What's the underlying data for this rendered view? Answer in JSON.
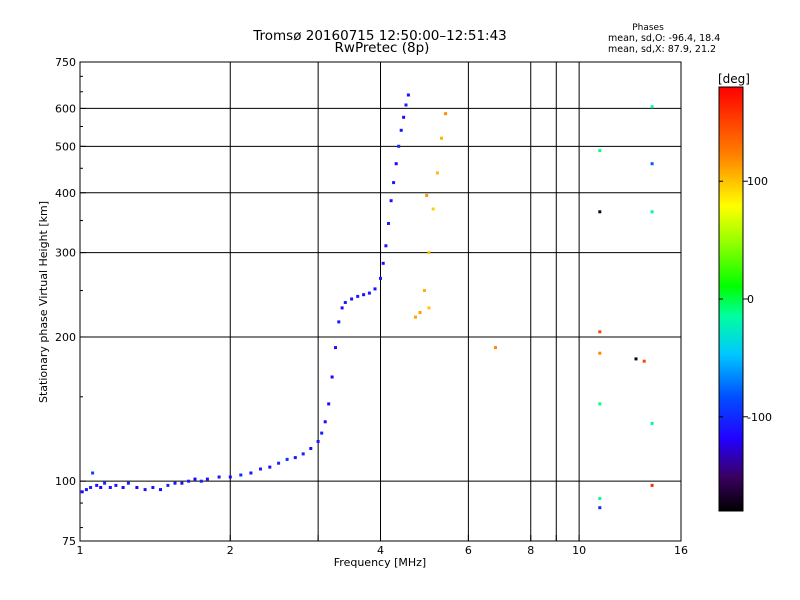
{
  "title_line1": "Tromsø 20160715 12:50:00–12:51:43",
  "title_line2": "RwPretec (8p)",
  "stats": {
    "heading": "Phases",
    "o_line": "mean, sd,O: -96.4, 18.4",
    "x_line": "mean, sd,X:  87.9, 21.2"
  },
  "xlabel": "Frequency [MHz]",
  "ylabel": "Stationary phase Virtual Height [km]",
  "colorbar": {
    "label": "[deg]",
    "range": [
      -180,
      180
    ],
    "ticks": [
      {
        "value": 100,
        "text": "100"
      },
      {
        "value": 0,
        "text": "0"
      },
      {
        "value": -100,
        "text": "-100"
      }
    ]
  },
  "chart_data": {
    "type": "scatter",
    "title": "Tromsø 20160715 12:50:00–12:51:43",
    "subtitle": "RwPretec (8p)",
    "xlabel": "Frequency [MHz]",
    "ylabel": "Stationary phase Virtual Height [km]",
    "xscale": "log",
    "yscale": "log",
    "xlim": [
      1,
      16
    ],
    "ylim": [
      75,
      750
    ],
    "grid": true,
    "x_ticks": [
      {
        "value": 1,
        "text": "1",
        "grid": false
      },
      {
        "value": 2,
        "text": "2",
        "grid": true
      },
      {
        "value": 3,
        "text": "",
        "grid": true
      },
      {
        "value": 4,
        "text": "4",
        "grid": true
      },
      {
        "value": 6,
        "text": "6",
        "grid": true
      },
      {
        "value": 8,
        "text": "8",
        "grid": true
      },
      {
        "value": 9,
        "text": "",
        "grid": true
      },
      {
        "value": 10,
        "text": "10",
        "grid": true
      },
      {
        "value": 16,
        "text": "16",
        "grid": false
      }
    ],
    "y_ticks": [
      {
        "value": 75,
        "text": "75",
        "grid": false
      },
      {
        "value": 100,
        "text": "100",
        "grid": true
      },
      {
        "value": 200,
        "text": "200",
        "grid": true
      },
      {
        "value": 300,
        "text": "300",
        "grid": true
      },
      {
        "value": 400,
        "text": "400",
        "grid": true
      },
      {
        "value": 500,
        "text": "500",
        "grid": true
      },
      {
        "value": 600,
        "text": "600",
        "grid": true
      },
      {
        "value": 750,
        "text": "750",
        "grid": false
      }
    ],
    "color_by": "phase [deg]",
    "points": [
      {
        "x": 1.01,
        "y": 95,
        "phase": -115
      },
      {
        "x": 1.03,
        "y": 96,
        "phase": -110
      },
      {
        "x": 1.05,
        "y": 97,
        "phase": -105
      },
      {
        "x": 1.06,
        "y": 104,
        "phase": -90
      },
      {
        "x": 1.08,
        "y": 98,
        "phase": -112
      },
      {
        "x": 1.1,
        "y": 97,
        "phase": -118
      },
      {
        "x": 1.12,
        "y": 99,
        "phase": -100
      },
      {
        "x": 1.15,
        "y": 97,
        "phase": -113
      },
      {
        "x": 1.18,
        "y": 98,
        "phase": -108
      },
      {
        "x": 1.22,
        "y": 97,
        "phase": -116
      },
      {
        "x": 1.25,
        "y": 99,
        "phase": -104
      },
      {
        "x": 1.3,
        "y": 97,
        "phase": -120
      },
      {
        "x": 1.35,
        "y": 96,
        "phase": -111
      },
      {
        "x": 1.4,
        "y": 97,
        "phase": -109
      },
      {
        "x": 1.45,
        "y": 96,
        "phase": -117
      },
      {
        "x": 1.5,
        "y": 98,
        "phase": -102
      },
      {
        "x": 1.55,
        "y": 99,
        "phase": -110
      },
      {
        "x": 1.6,
        "y": 99,
        "phase": -114
      },
      {
        "x": 1.65,
        "y": 100,
        "phase": -106
      },
      {
        "x": 1.7,
        "y": 101,
        "phase": -118
      },
      {
        "x": 1.75,
        "y": 100,
        "phase": -103
      },
      {
        "x": 1.8,
        "y": 101,
        "phase": -112
      },
      {
        "x": 1.9,
        "y": 102,
        "phase": -108
      },
      {
        "x": 2.0,
        "y": 102,
        "phase": -115
      },
      {
        "x": 2.1,
        "y": 103,
        "phase": -99
      },
      {
        "x": 2.2,
        "y": 104,
        "phase": -111
      },
      {
        "x": 2.3,
        "y": 106,
        "phase": -105
      },
      {
        "x": 2.4,
        "y": 107,
        "phase": -113
      },
      {
        "x": 2.5,
        "y": 109,
        "phase": -101
      },
      {
        "x": 2.6,
        "y": 111,
        "phase": -96
      },
      {
        "x": 2.7,
        "y": 112,
        "phase": -108
      },
      {
        "x": 2.8,
        "y": 114,
        "phase": -104
      },
      {
        "x": 2.9,
        "y": 117,
        "phase": -112
      },
      {
        "x": 3.0,
        "y": 121,
        "phase": -110
      },
      {
        "x": 3.05,
        "y": 126,
        "phase": -107
      },
      {
        "x": 3.1,
        "y": 133,
        "phase": -115
      },
      {
        "x": 3.15,
        "y": 145,
        "phase": -113
      },
      {
        "x": 3.2,
        "y": 165,
        "phase": -118
      },
      {
        "x": 3.25,
        "y": 190,
        "phase": -112
      },
      {
        "x": 3.3,
        "y": 215,
        "phase": -109
      },
      {
        "x": 3.35,
        "y": 230,
        "phase": -114
      },
      {
        "x": 3.4,
        "y": 236,
        "phase": -104
      },
      {
        "x": 3.5,
        "y": 240,
        "phase": -111
      },
      {
        "x": 3.6,
        "y": 243,
        "phase": -106
      },
      {
        "x": 3.7,
        "y": 245,
        "phase": -113
      },
      {
        "x": 3.8,
        "y": 247,
        "phase": -109
      },
      {
        "x": 3.9,
        "y": 252,
        "phase": -112
      },
      {
        "x": 4.0,
        "y": 265,
        "phase": -107
      },
      {
        "x": 4.05,
        "y": 285,
        "phase": -114
      },
      {
        "x": 4.1,
        "y": 310,
        "phase": -110
      },
      {
        "x": 4.15,
        "y": 345,
        "phase": -105
      },
      {
        "x": 4.2,
        "y": 385,
        "phase": -112
      },
      {
        "x": 4.25,
        "y": 420,
        "phase": -108
      },
      {
        "x": 4.3,
        "y": 460,
        "phase": -115
      },
      {
        "x": 4.35,
        "y": 500,
        "phase": -101
      },
      {
        "x": 4.4,
        "y": 540,
        "phase": -109
      },
      {
        "x": 4.45,
        "y": 575,
        "phase": -113
      },
      {
        "x": 4.5,
        "y": 610,
        "phase": -106
      },
      {
        "x": 4.55,
        "y": 640,
        "phase": -111
      },
      {
        "x": 4.7,
        "y": 220,
        "phase": 110
      },
      {
        "x": 4.8,
        "y": 225,
        "phase": 112
      },
      {
        "x": 4.9,
        "y": 250,
        "phase": 106
      },
      {
        "x": 5.0,
        "y": 300,
        "phase": 100
      },
      {
        "x": 5.1,
        "y": 370,
        "phase": 95
      },
      {
        "x": 5.2,
        "y": 440,
        "phase": 102
      },
      {
        "x": 5.3,
        "y": 520,
        "phase": 105
      },
      {
        "x": 5.4,
        "y": 585,
        "phase": 118
      },
      {
        "x": 5.0,
        "y": 230,
        "phase": 98
      },
      {
        "x": 4.95,
        "y": 395,
        "phase": 115
      },
      {
        "x": 6.8,
        "y": 190,
        "phase": 120
      },
      {
        "x": 11.0,
        "y": 490,
        "phase": -10
      },
      {
        "x": 11.0,
        "y": 365,
        "phase": -170
      },
      {
        "x": 11.0,
        "y": 205,
        "phase": 150
      },
      {
        "x": 11.0,
        "y": 185,
        "phase": 120
      },
      {
        "x": 11.0,
        "y": 145,
        "phase": -10
      },
      {
        "x": 11.0,
        "y": 92,
        "phase": -10
      },
      {
        "x": 11.0,
        "y": 88,
        "phase": -100
      },
      {
        "x": 13.0,
        "y": 180,
        "phase": -170
      },
      {
        "x": 13.5,
        "y": 178,
        "phase": 150
      },
      {
        "x": 14.0,
        "y": 605,
        "phase": -20
      },
      {
        "x": 14.0,
        "y": 460,
        "phase": -80
      },
      {
        "x": 14.0,
        "y": 365,
        "phase": -20
      },
      {
        "x": 14.0,
        "y": 132,
        "phase": -20
      },
      {
        "x": 14.0,
        "y": 98,
        "phase": 160
      }
    ]
  }
}
